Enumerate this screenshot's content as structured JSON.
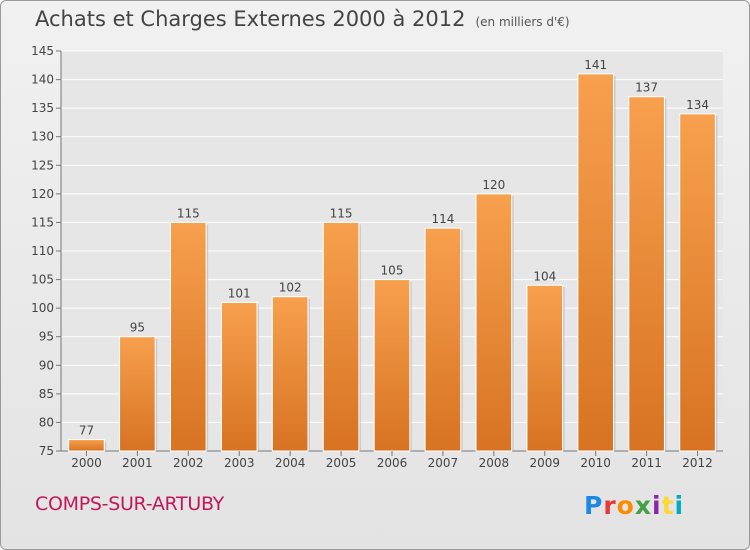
{
  "header": {
    "title": "Achats et Charges Externes 2000 à 2012",
    "unit": "(en milliers d'€)"
  },
  "commune": "COMPS-SUR-ARTUBY",
  "logo": {
    "letters": [
      "P",
      "r",
      "o",
      "x",
      "i",
      "t",
      "i"
    ]
  },
  "colors": {
    "bar_top": "#f7a04e",
    "bar_bottom": "#d77322",
    "commune_text": "#c2185b"
  },
  "chart_data": {
    "type": "bar",
    "title": "Achats et Charges Externes 2000 à 2012",
    "subtitle": "(en milliers d'€)",
    "xlabel": "",
    "ylabel": "",
    "categories": [
      "2000",
      "2001",
      "2002",
      "2003",
      "2004",
      "2005",
      "2006",
      "2007",
      "2008",
      "2009",
      "2010",
      "2011",
      "2012"
    ],
    "values": [
      77,
      95,
      115,
      101,
      102,
      115,
      105,
      114,
      120,
      104,
      141,
      137,
      134
    ],
    "ylim": [
      75,
      145
    ],
    "yticks": [
      75,
      80,
      85,
      90,
      95,
      100,
      105,
      110,
      115,
      120,
      125,
      130,
      135,
      140,
      145
    ],
    "grid": true,
    "legend": "none"
  }
}
